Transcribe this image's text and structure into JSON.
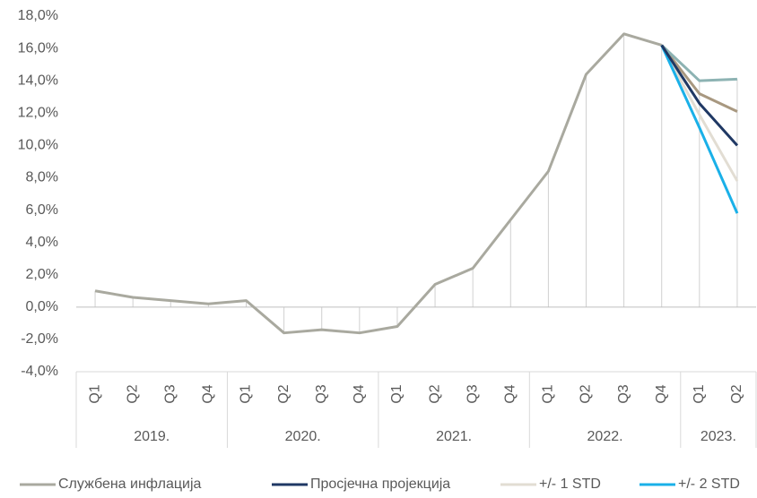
{
  "chart_data": {
    "type": "line",
    "categories": [
      "Q1",
      "Q2",
      "Q3",
      "Q4",
      "Q1",
      "Q2",
      "Q3",
      "Q4",
      "Q1",
      "Q2",
      "Q3",
      "Q4",
      "Q1",
      "Q2",
      "Q3",
      "Q4",
      "Q1",
      "Q2"
    ],
    "category_groups": [
      "2019.",
      "2020.",
      "2021.",
      "2022.",
      "2023."
    ],
    "series": [
      {
        "name": "Службена инфлација",
        "color": "#a9a99f",
        "values": [
          1.0,
          0.6,
          0.4,
          0.2,
          0.4,
          -1.6,
          -1.4,
          -1.6,
          -1.2,
          1.4,
          2.4,
          5.4,
          8.4,
          14.4,
          16.9,
          16.2,
          null,
          null
        ]
      },
      {
        "name": "Просјечна пројекција",
        "color": "#1f3864",
        "values": [
          null,
          null,
          null,
          null,
          null,
          null,
          null,
          null,
          null,
          null,
          null,
          null,
          null,
          null,
          null,
          16.2,
          12.6,
          10.0
        ]
      },
      {
        "name": "+/- 1 STD",
        "color": "#e2ddd3",
        "values": [
          null,
          null,
          null,
          null,
          null,
          null,
          null,
          null,
          null,
          null,
          null,
          null,
          null,
          null,
          null,
          16.2,
          11.9,
          7.8
        ]
      },
      {
        "name": "+/- 2 STD",
        "color": "#1ab0e8",
        "values": [
          null,
          null,
          null,
          null,
          null,
          null,
          null,
          null,
          null,
          null,
          null,
          null,
          null,
          null,
          null,
          16.2,
          11.1,
          5.8
        ]
      },
      {
        "color": "#a89880",
        "values": [
          null,
          null,
          null,
          null,
          null,
          null,
          null,
          null,
          null,
          null,
          null,
          null,
          null,
          null,
          null,
          16.2,
          13.2,
          12.1
        ]
      },
      {
        "color": "#8db3b3",
        "values": [
          null,
          null,
          null,
          null,
          null,
          null,
          null,
          null,
          null,
          null,
          null,
          null,
          null,
          null,
          null,
          16.2,
          14.0,
          14.1
        ]
      }
    ],
    "ylim": [
      -4,
      18
    ],
    "yticks": [
      {
        "value": -4,
        "label": "-4,0%"
      },
      {
        "value": -2,
        "label": "-2,0%"
      },
      {
        "value": 0,
        "label": "0,0%"
      },
      {
        "value": 2,
        "label": "2,0%"
      },
      {
        "value": 4,
        "label": "4,0%"
      },
      {
        "value": 6,
        "label": "6,0%"
      },
      {
        "value": 8,
        "label": "8,0%"
      },
      {
        "value": 10,
        "label": "10,0%"
      },
      {
        "value": 12,
        "label": "12,0%"
      },
      {
        "value": 14,
        "label": "14,0%"
      },
      {
        "value": 16,
        "label": "16,0%"
      },
      {
        "value": 18,
        "label": "18,0%"
      }
    ],
    "legend": "bottom"
  }
}
